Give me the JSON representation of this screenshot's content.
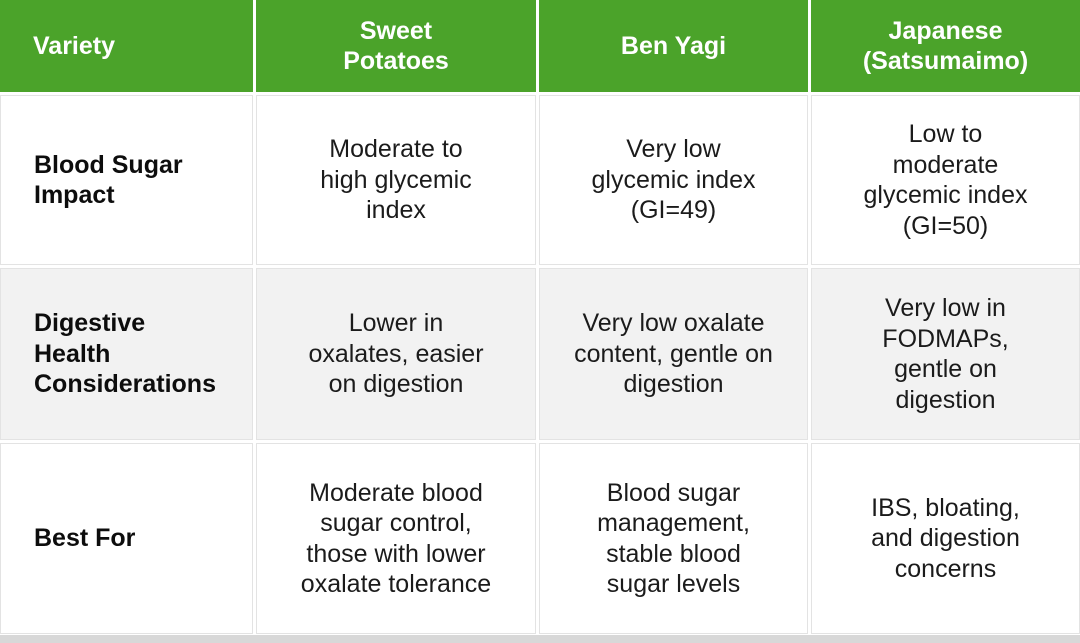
{
  "colors": {
    "header_bg": "#4BA32A",
    "header_text": "#ffffff",
    "row_alt_bg": "#f2f2f2",
    "body_text": "#1b1b1b",
    "grid_line": "#e3e3e3",
    "bottom_strip": "#d8d8d8"
  },
  "table": {
    "columns": [
      "Variety",
      "Sweet\nPotatoes",
      "Ben Yagi",
      "Japanese\n(Satsumaimo)"
    ],
    "rows": [
      {
        "label": "Blood Sugar\nImpact",
        "cells": [
          "Moderate to\nhigh glycemic\nindex",
          "Very low\nglycemic index\n(GI=49)",
          "Low to\nmoderate\nglycemic index\n(GI=50)"
        ]
      },
      {
        "label": "Digestive\nHealth\nConsiderations",
        "cells": [
          "Lower in\noxalates, easier\non digestion",
          "Very low oxalate\ncontent, gentle on\ndigestion",
          "Very low in\nFODMAPs,\ngentle on\ndigestion"
        ]
      },
      {
        "label": "Best For",
        "cells": [
          "Moderate blood\nsugar control,\nthose with lower\noxalate tolerance",
          "Blood sugar\nmanagement,\nstable blood\nsugar levels",
          "IBS, bloating,\nand digestion\nconcerns"
        ]
      }
    ]
  }
}
